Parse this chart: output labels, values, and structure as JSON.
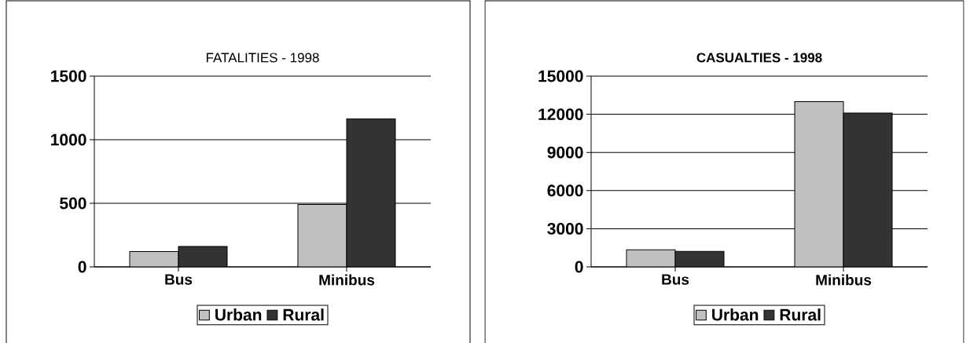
{
  "chart_data": [
    {
      "type": "bar",
      "title": "FATALITIES - 1998",
      "categories": [
        "Bus",
        "Minibus"
      ],
      "series": [
        {
          "name": "Urban",
          "color": "#c0c0c0",
          "values": [
            120,
            490
          ]
        },
        {
          "name": "Rural",
          "color": "#333333",
          "values": [
            160,
            1165
          ]
        }
      ],
      "ylim": [
        0,
        1500
      ],
      "yticks": [
        0,
        500,
        1000,
        1500
      ],
      "grid": "y",
      "legend": "bottom"
    },
    {
      "type": "bar",
      "title": "CASUALTIES - 1998",
      "categories": [
        "Bus",
        "Minibus"
      ],
      "series": [
        {
          "name": "Urban",
          "color": "#c0c0c0",
          "values": [
            1350,
            13000
          ]
        },
        {
          "name": "Rural",
          "color": "#333333",
          "values": [
            1220,
            12100
          ]
        }
      ],
      "ylim": [
        0,
        15000
      ],
      "yticks": [
        0,
        3000,
        6000,
        9000,
        12000,
        15000
      ],
      "grid": "y",
      "legend": "bottom"
    }
  ]
}
